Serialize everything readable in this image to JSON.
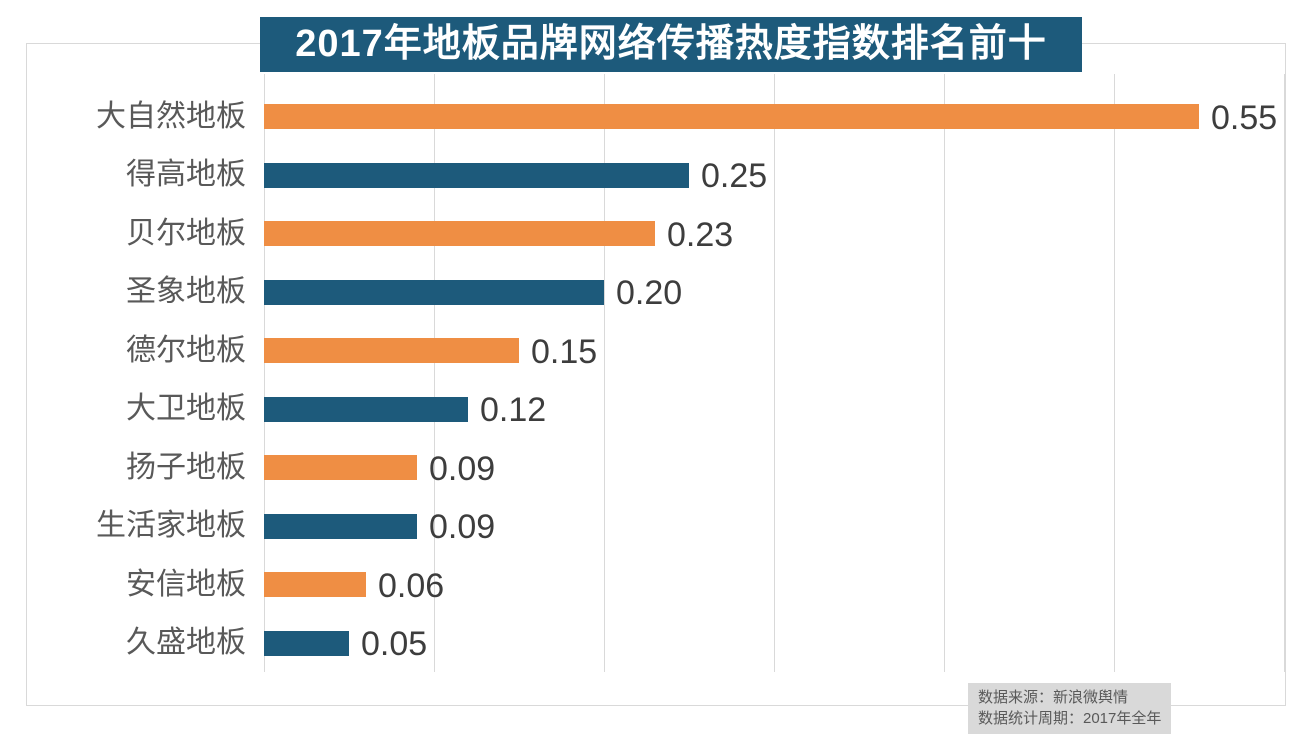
{
  "title": "2017年地板品牌网络传播热度指数排名前十",
  "chart_data": {
    "type": "bar",
    "orientation": "horizontal",
    "title": "2017年地板品牌网络传播热度指数排名前十",
    "categories": [
      "大自然地板",
      "得高地板",
      "贝尔地板",
      "圣象地板",
      "德尔地板",
      "大卫地板",
      "扬子地板",
      "生活家地板",
      "安信地板",
      "久盛地板"
    ],
    "values": [
      0.55,
      0.25,
      0.23,
      0.2,
      0.15,
      0.12,
      0.09,
      0.09,
      0.06,
      0.05
    ],
    "value_labels": [
      "0.55",
      "0.25",
      "0.23",
      "0.20",
      "0.15",
      "0.12",
      "0.09",
      "0.09",
      "0.06",
      "0.05"
    ],
    "xlabel": "",
    "ylabel": "",
    "xlim": [
      0,
      0.6
    ],
    "grid_step": 0.1,
    "grid": "vertical-only",
    "legend_position": "none",
    "bar_palette": [
      "#ef8e44",
      "#1d5a7b"
    ],
    "bar_color_rule": "alternating, first bar orange"
  },
  "footer": {
    "source": "数据来源：新浪微舆情",
    "period": "数据统计周期：2017年全年"
  },
  "colors": {
    "title_bg": "#1d5a7b",
    "title_text": "#ffffff",
    "orange": "#ef8e44",
    "blue": "#1d5a7b",
    "grid": "#d9d9d9",
    "border": "#d9d9d9",
    "category_text": "#595959",
    "value_text": "#3d3d3d",
    "footer_bg": "#d9d9d9",
    "footer_text": "#595959"
  }
}
